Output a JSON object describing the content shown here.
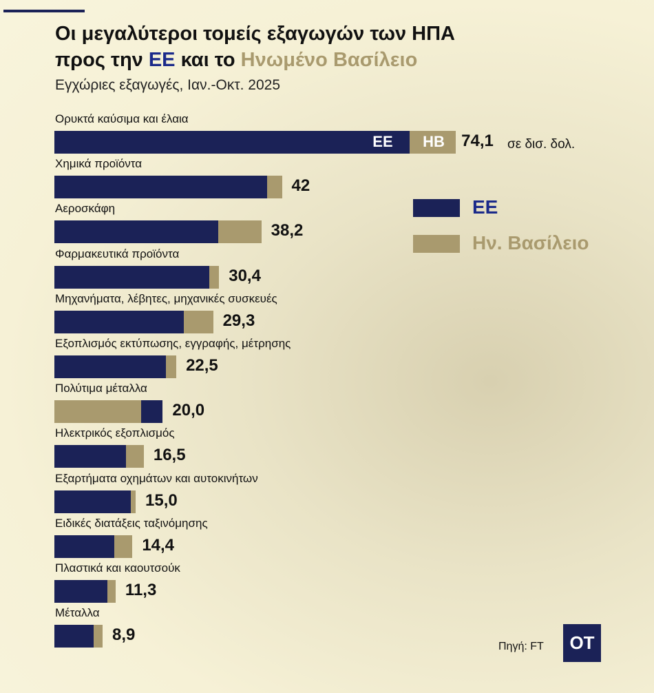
{
  "title_line1": "Οι μεγαλύτεροι τομείς εξαγωγών των ΗΠΑ",
  "title_line2_pre": "προς την ",
  "title_line2_ee": "ΕΕ",
  "title_line2_mid": " και το ",
  "title_line2_uk": "Ηνωμένο Βασίλειο",
  "subtitle": "Εγχώριες εξαγωγές, Ιαν.-Οκτ. 2025",
  "unit_label": "σε δισ. δολ.",
  "bar_labels": {
    "ee": "ΕΕ",
    "uk": "ΗΒ"
  },
  "legend": [
    {
      "label": "ΕΕ",
      "color": "#1b2257"
    },
    {
      "label": "Ην. Βασίλειο",
      "color": "#a99a6e"
    }
  ],
  "source": "Πηγή: FT",
  "logo": "OT",
  "colors": {
    "ee": "#1b2257",
    "uk": "#a99a6e",
    "ee_text": "#1b2a8a"
  },
  "chart_data": {
    "type": "bar",
    "orientation": "horizontal",
    "stacked": true,
    "categories": [
      "Ορυκτά καύσιμα και έλαια",
      "Χημικά προϊόντα",
      "Αεροσκάφη",
      "Φαρμακευτικά προϊόντα",
      "Μηχανήματα, λέβητες, μηχανικές συσκευές",
      "Εξοπλισμός εκτύπωσης, εγγραφής, μέτρησης",
      "Πολύτιμα μέταλλα",
      "Ηλεκτρικός εξοπλισμός",
      "Εξαρτήματα οχημάτων και αυτοκινήτων",
      "Ειδικές διατάξεις ταξινόμησης",
      "Πλαστικά και καουτσούκ",
      "Μέταλλα"
    ],
    "totals": [
      "74,1",
      "42",
      "38,2",
      "30,4",
      "29,3",
      "22,5",
      "20,0",
      "16,5",
      "15,0",
      "14,4",
      "11,3",
      "8,9"
    ],
    "series": [
      {
        "name": "ΕΕ",
        "values": [
          65.6,
          39.3,
          30.2,
          28.6,
          23.9,
          20.6,
          4.0,
          13.2,
          14.1,
          11.1,
          9.8,
          7.2
        ]
      },
      {
        "name": "Ην. Βασίλειο",
        "values": [
          8.5,
          2.7,
          8.0,
          1.8,
          5.4,
          1.9,
          16.0,
          3.3,
          0.9,
          3.3,
          1.5,
          1.7
        ]
      }
    ],
    "uk_first_rows": [
      6
    ],
    "unit": "σε δισ. δολ."
  }
}
